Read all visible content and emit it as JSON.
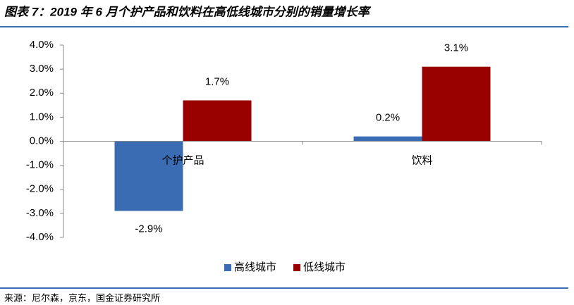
{
  "chart_data": {
    "type": "bar",
    "title": "图表 7：2019 年 6 月个护产品和饮料在高低线城市分别的销量增长率",
    "source": "来源：尼尔森，京东，国金证券研究所",
    "categories": [
      "个护产品",
      "饮料"
    ],
    "series": [
      {
        "name": "高线城市",
        "color": "#3a6cb4",
        "values": [
          -2.9,
          0.2
        ],
        "value_labels": [
          "-2.9%",
          "0.2%"
        ]
      },
      {
        "name": "低线城市",
        "color": "#990000",
        "values": [
          1.7,
          3.1
        ],
        "value_labels": [
          "1.7%",
          "3.1%"
        ]
      }
    ],
    "ylim": [
      -4,
      4
    ],
    "yticks": [
      {
        "value": 4,
        "label": "4.0%"
      },
      {
        "value": 3,
        "label": "3.0%"
      },
      {
        "value": 2,
        "label": "2.0%"
      },
      {
        "value": 1,
        "label": "1.0%"
      },
      {
        "value": 0,
        "label": "0.0%"
      },
      {
        "value": -1,
        "label": "-1.0%"
      },
      {
        "value": -2,
        "label": "-2.0%"
      },
      {
        "value": -3,
        "label": "-3.0%"
      },
      {
        "value": -4,
        "label": "-4.0%"
      }
    ],
    "grid": false,
    "legend": "bottom"
  }
}
